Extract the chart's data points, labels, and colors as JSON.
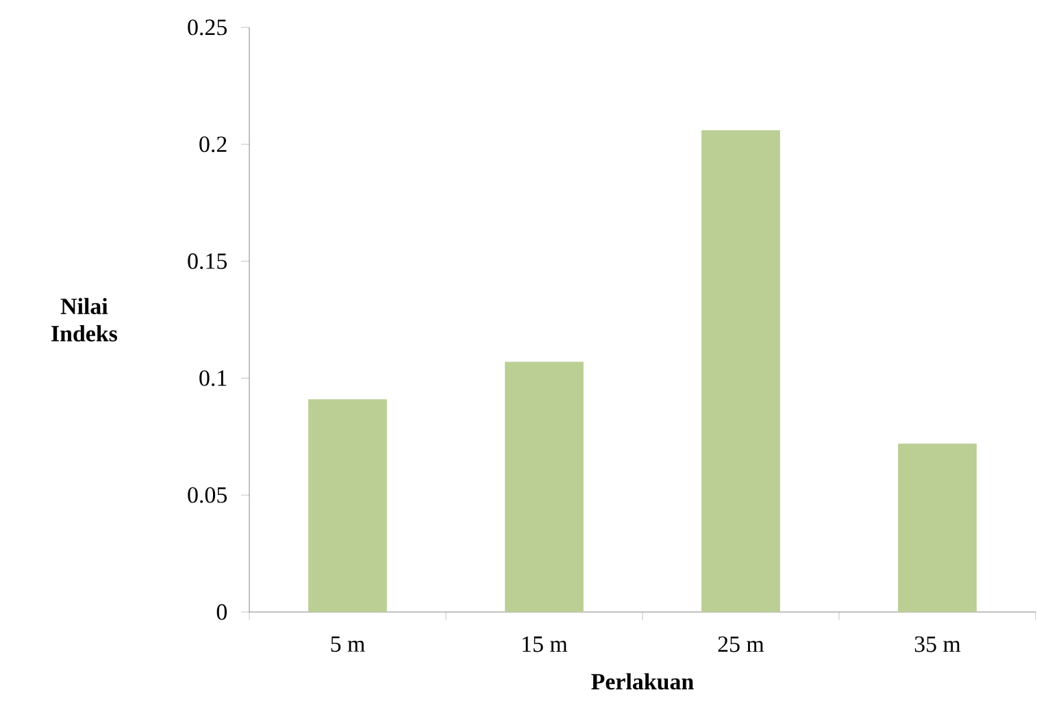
{
  "chart_data": {
    "type": "bar",
    "xlabel": "Perlakuan",
    "ylabel": "Nilai Indeks",
    "categories": [
      "5 m",
      "15 m",
      "25 m",
      "35 m"
    ],
    "values": [
      0.091,
      0.107,
      0.206,
      0.072
    ],
    "color": "#bbcf95",
    "ylim": [
      0,
      0.25
    ],
    "yticks": [
      0,
      0.05,
      0.1,
      0.15,
      0.2,
      0.25
    ],
    "grid": false
  }
}
